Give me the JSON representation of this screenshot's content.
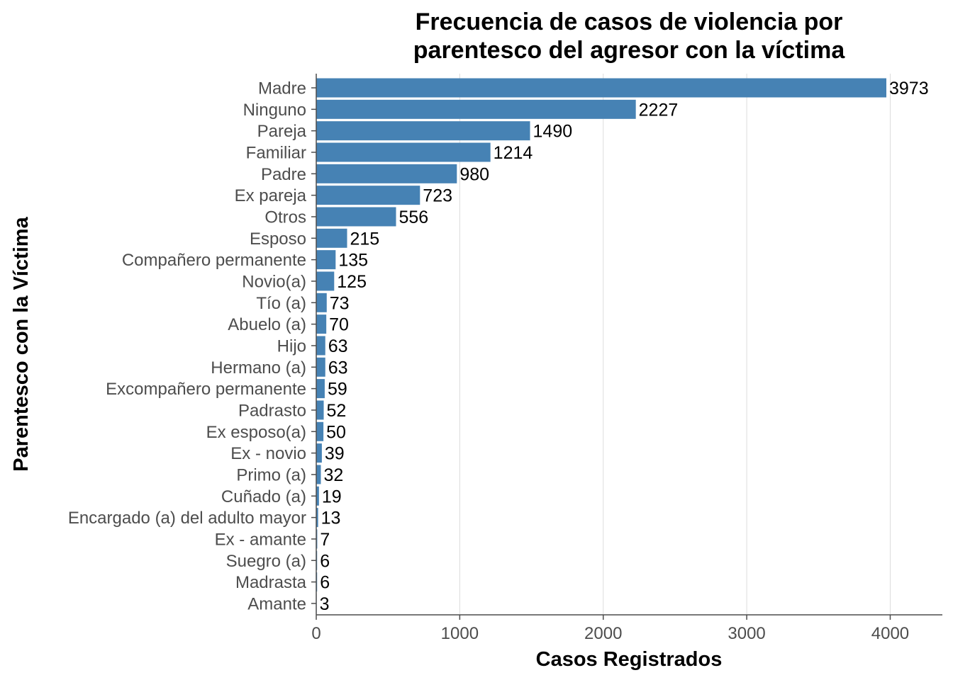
{
  "chart_data": {
    "type": "bar",
    "orientation": "horizontal",
    "title_lines": [
      "Frecuencia de casos de violencia por",
      "parentesco del agresor con la víctima"
    ],
    "xlabel": "Casos Registrados",
    "ylabel": "Parentesco con la Víctima",
    "xlim": [
      0,
      4350
    ],
    "xticks": [
      0,
      1000,
      2000,
      3000,
      4000
    ],
    "grid": "vertical major",
    "bar_color": "#4682B4",
    "categories": [
      "Madre",
      "Ninguno",
      "Pareja",
      "Familiar",
      "Padre",
      "Ex pareja",
      "Otros",
      "Esposo",
      "Compañero permanente",
      "Novio(a)",
      "Tío (a)",
      "Abuelo (a)",
      "Hijo",
      "Hermano (a)",
      "Excompañero permanente",
      "Padrasto",
      "Ex esposo(a)",
      "Ex - novio",
      "Primo (a)",
      "Cuñado (a)",
      "Encargado (a) del adulto mayor",
      "Ex - amante",
      "Suegro (a)",
      "Madrasta",
      "Amante"
    ],
    "values": [
      3973,
      2227,
      1490,
      1214,
      980,
      723,
      556,
      215,
      135,
      125,
      73,
      70,
      63,
      63,
      59,
      52,
      50,
      39,
      32,
      19,
      13,
      7,
      6,
      6,
      3
    ]
  }
}
